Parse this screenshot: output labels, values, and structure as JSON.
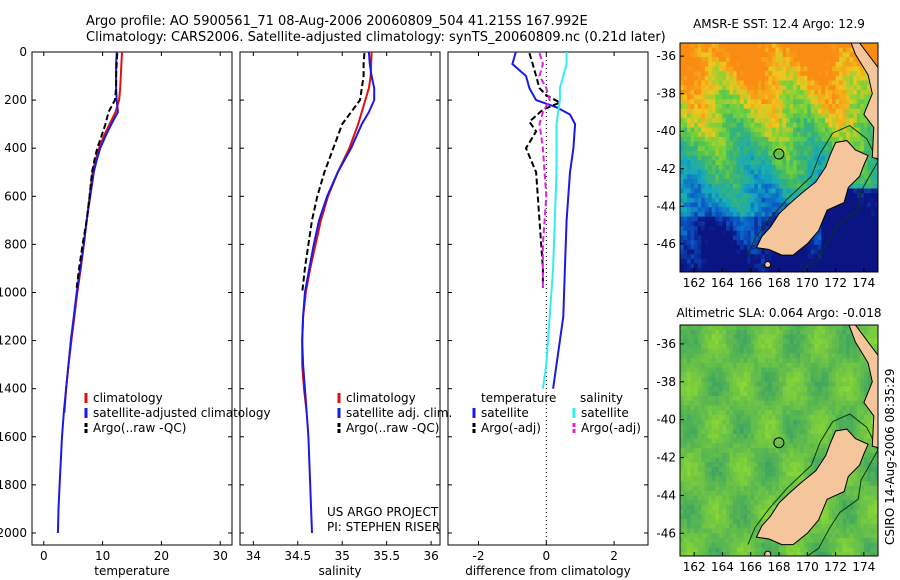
{
  "title": {
    "line1": "Argo profile: AO 5900561_71 08-Aug-2006 20060809_504 41.215S 167.992E",
    "line2": "Climatology: CARS2006. Satellite-adjusted climatology: synTS_20060809.nc (0.21d later)"
  },
  "stamp": "CSIRO 14-Aug-2006 08:35:29",
  "colors": {
    "climatology": "#dd1111",
    "satellite": "#1a1ae6",
    "argo": "#000000",
    "sal_sat": "#33eeee",
    "sal_argo": "#dd22dd",
    "land": "#f5c59c"
  },
  "chart_data": [
    {
      "type": "line",
      "id": "temperature",
      "xlabel": "temperature",
      "ylabel": "",
      "xlim": [
        -2,
        32
      ],
      "ylim": [
        2050,
        0
      ],
      "xticks": [
        "0",
        "10",
        "20",
        "30"
      ],
      "xtick_values": [
        0,
        10,
        20,
        30
      ],
      "yticks": [
        "0",
        "200",
        "400",
        "600",
        "800",
        "1000",
        "1200",
        "1400",
        "1600",
        "1800",
        "2000"
      ],
      "ytick_values": [
        0,
        200,
        400,
        600,
        800,
        1000,
        1200,
        1400,
        1600,
        1800,
        2000
      ],
      "legend": [
        "climatology",
        "satellite-adjusted climatology",
        "Argo(..raw -QC)"
      ],
      "series": [
        {
          "name": "climatology",
          "style": "solid",
          "color": "#dd1111",
          "points": [
            [
              13.3,
              0
            ],
            [
              13.2,
              50
            ],
            [
              13.1,
              100
            ],
            [
              13.0,
              150
            ],
            [
              12.8,
              200
            ],
            [
              12.2,
              250
            ],
            [
              11.2,
              300
            ],
            [
              10.2,
              350
            ],
            [
              9.4,
              400
            ],
            [
              8.8,
              450
            ],
            [
              8.3,
              500
            ],
            [
              7.8,
              600
            ],
            [
              7.3,
              700
            ],
            [
              6.8,
              800
            ],
            [
              6.3,
              900
            ],
            [
              5.7,
              1000
            ],
            [
              5.2,
              1100
            ],
            [
              4.7,
              1200
            ],
            [
              4.2,
              1300
            ],
            [
              3.8,
              1400
            ],
            [
              3.5,
              1500
            ]
          ]
        },
        {
          "name": "satellite-adjusted climatology",
          "style": "solid",
          "color": "#1a1ae6",
          "points": [
            [
              12.4,
              0
            ],
            [
              12.3,
              50
            ],
            [
              12.3,
              100
            ],
            [
              12.3,
              150
            ],
            [
              12.4,
              200
            ],
            [
              12.6,
              250
            ],
            [
              11.5,
              300
            ],
            [
              10.5,
              350
            ],
            [
              9.6,
              400
            ],
            [
              9.0,
              450
            ],
            [
              8.5,
              500
            ],
            [
              7.9,
              600
            ],
            [
              7.3,
              700
            ],
            [
              6.8,
              800
            ],
            [
              6.2,
              900
            ],
            [
              5.6,
              1000
            ],
            [
              5.1,
              1100
            ],
            [
              4.6,
              1200
            ],
            [
              4.2,
              1300
            ],
            [
              3.8,
              1400
            ],
            [
              3.4,
              1500
            ],
            [
              3.1,
              1600
            ],
            [
              2.9,
              1700
            ],
            [
              2.7,
              1800
            ],
            [
              2.5,
              1900
            ],
            [
              2.4,
              2000
            ]
          ]
        },
        {
          "name": "Argo(..raw -QC)",
          "style": "dashed",
          "color": "#000000",
          "points": [
            [
              12.5,
              5
            ],
            [
              12.4,
              50
            ],
            [
              12.3,
              100
            ],
            [
              12.3,
              150
            ],
            [
              12.1,
              200
            ],
            [
              11.0,
              250
            ],
            [
              10.5,
              300
            ],
            [
              9.8,
              350
            ],
            [
              9.1,
              400
            ],
            [
              8.6,
              450
            ],
            [
              8.2,
              500
            ],
            [
              7.8,
              600
            ],
            [
              7.3,
              700
            ],
            [
              6.6,
              800
            ],
            [
              6.0,
              900
            ],
            [
              5.6,
              980
            ]
          ]
        }
      ]
    },
    {
      "type": "line",
      "id": "salinity",
      "xlabel": "salinity",
      "xlim": [
        33.85,
        36.1
      ],
      "ylim": [
        2050,
        0
      ],
      "xticks": [
        "34",
        "34.5",
        "35",
        "35.5",
        "36"
      ],
      "xtick_values": [
        34,
        34.5,
        35,
        35.5,
        36
      ],
      "legend": [
        "climatology",
        "satellite adj. clim.",
        "Argo(..raw -QC)"
      ],
      "annotation": [
        "US ARGO PROJECT",
        "PI: STEPHEN RISER"
      ],
      "series": [
        {
          "name": "climatology",
          "style": "solid",
          "color": "#dd1111",
          "points": [
            [
              35.33,
              0
            ],
            [
              35.32,
              100
            ],
            [
              35.3,
              150
            ],
            [
              35.26,
              200
            ],
            [
              35.18,
              300
            ],
            [
              35.08,
              400
            ],
            [
              34.95,
              500
            ],
            [
              34.84,
              600
            ],
            [
              34.76,
              700
            ],
            [
              34.7,
              800
            ],
            [
              34.64,
              900
            ],
            [
              34.59,
              1000
            ],
            [
              34.56,
              1100
            ],
            [
              34.55,
              1200
            ],
            [
              34.55,
              1300
            ],
            [
              34.57,
              1400
            ],
            [
              34.6,
              1500
            ]
          ]
        },
        {
          "name": "satellite adj. clim.",
          "style": "solid",
          "color": "#1a1ae6",
          "points": [
            [
              35.3,
              0
            ],
            [
              35.31,
              50
            ],
            [
              35.33,
              100
            ],
            [
              35.36,
              150
            ],
            [
              35.36,
              200
            ],
            [
              35.3,
              250
            ],
            [
              35.22,
              300
            ],
            [
              35.1,
              400
            ],
            [
              34.95,
              500
            ],
            [
              34.83,
              600
            ],
            [
              34.74,
              700
            ],
            [
              34.68,
              800
            ],
            [
              34.63,
              900
            ],
            [
              34.58,
              1000
            ],
            [
              34.56,
              1100
            ],
            [
              34.55,
              1200
            ],
            [
              34.56,
              1300
            ],
            [
              34.58,
              1400
            ],
            [
              34.6,
              1500
            ],
            [
              34.62,
              1600
            ],
            [
              34.63,
              1700
            ],
            [
              34.64,
              1800
            ],
            [
              34.65,
              1900
            ],
            [
              34.66,
              2000
            ]
          ]
        },
        {
          "name": "Argo(..raw -QC)",
          "style": "dashed",
          "color": "#000000",
          "points": [
            [
              35.25,
              5
            ],
            [
              35.24,
              50
            ],
            [
              35.24,
              100
            ],
            [
              35.22,
              150
            ],
            [
              35.2,
              200
            ],
            [
              35.1,
              250
            ],
            [
              35.0,
              300
            ],
            [
              34.9,
              400
            ],
            [
              34.8,
              500
            ],
            [
              34.72,
              600
            ],
            [
              34.66,
              700
            ],
            [
              34.62,
              800
            ],
            [
              34.58,
              900
            ],
            [
              34.55,
              1000
            ]
          ]
        }
      ]
    },
    {
      "type": "line",
      "id": "difference",
      "xlabel": "difference from climatology",
      "xlim": [
        -2.9,
        3.0
      ],
      "ylim": [
        2050,
        0
      ],
      "xticks": [
        "-2",
        "0",
        "2"
      ],
      "xtick_values": [
        -2,
        0,
        2
      ],
      "legend_temperature": [
        "temperature",
        "satellite",
        "Argo(-adj)"
      ],
      "legend_salinity": [
        "salinity",
        "satellite",
        "Argo(-adj)"
      ],
      "series": [
        {
          "name": "temperature satellite",
          "style": "solid",
          "color": "#1a1ae6",
          "points": [
            [
              -0.9,
              0
            ],
            [
              -1.0,
              50
            ],
            [
              -0.6,
              100
            ],
            [
              -0.5,
              150
            ],
            [
              -0.3,
              200
            ],
            [
              0.3,
              230
            ],
            [
              0.7,
              260
            ],
            [
              0.85,
              300
            ],
            [
              0.8,
              400
            ],
            [
              0.7,
              500
            ],
            [
              0.6,
              700
            ],
            [
              0.55,
              900
            ],
            [
              0.5,
              1100
            ],
            [
              0.3,
              1300
            ],
            [
              0.2,
              1400
            ]
          ]
        },
        {
          "name": "temperature Argo(-adj)",
          "style": "dashed",
          "color": "#000000",
          "points": [
            [
              -0.5,
              5
            ],
            [
              -0.4,
              50
            ],
            [
              -0.3,
              100
            ],
            [
              -0.2,
              150
            ],
            [
              0.0,
              180
            ],
            [
              0.4,
              210
            ],
            [
              -0.1,
              240
            ],
            [
              -0.5,
              290
            ],
            [
              -0.3,
              330
            ],
            [
              -0.6,
              400
            ],
            [
              -0.3,
              500
            ],
            [
              -0.2,
              700
            ],
            [
              -0.1,
              900
            ],
            [
              -0.1,
              980
            ]
          ]
        },
        {
          "name": "salinity satellite",
          "style": "solid",
          "color": "#33eeee",
          "points": [
            [
              0.6,
              0
            ],
            [
              0.6,
              50
            ],
            [
              0.4,
              150
            ],
            [
              0.4,
              200
            ],
            [
              0.3,
              300
            ],
            [
              0.3,
              500
            ],
            [
              0.25,
              700
            ],
            [
              0.2,
              900
            ],
            [
              0.1,
              1100
            ],
            [
              0.0,
              1300
            ],
            [
              -0.1,
              1400
            ]
          ]
        },
        {
          "name": "salinity Argo(-adj)",
          "style": "dashed",
          "color": "#dd22dd",
          "points": [
            [
              -0.2,
              5
            ],
            [
              -0.1,
              50
            ],
            [
              -0.2,
              100
            ],
            [
              0.0,
              150
            ],
            [
              0.1,
              200
            ],
            [
              -0.1,
              250
            ],
            [
              -0.2,
              300
            ],
            [
              -0.1,
              400
            ],
            [
              0.0,
              600
            ],
            [
              -0.1,
              800
            ],
            [
              -0.1,
              980
            ]
          ]
        }
      ]
    },
    {
      "type": "heatmap",
      "id": "sst-map",
      "title": "AMSR-E SST: 12.4  Argo: 12.9",
      "xlim": [
        161,
        175
      ],
      "ylim": [
        -47.5,
        -35.3
      ],
      "xticks": [
        "162",
        "164",
        "166",
        "168",
        "170",
        "172",
        "174"
      ],
      "xtick_values": [
        162,
        164,
        166,
        168,
        170,
        172,
        174
      ],
      "yticks": [
        "-36",
        "-38",
        "-40",
        "-42",
        "-44",
        "-46"
      ],
      "ytick_values": [
        -36,
        -38,
        -40,
        -42,
        -44,
        -46
      ],
      "marker": {
        "lon": 167.992,
        "lat": -41.215
      }
    },
    {
      "type": "heatmap",
      "id": "sla-map",
      "title": "Altimetric SLA: 0.064  Argo: -0.018",
      "xlim": [
        161,
        175
      ],
      "ylim": [
        -47.2,
        -35.0
      ],
      "xticks": [
        "162",
        "164",
        "166",
        "168",
        "170",
        "172",
        "174"
      ],
      "xtick_values": [
        162,
        164,
        166,
        168,
        170,
        172,
        174
      ],
      "yticks": [
        "-36",
        "-38",
        "-40",
        "-42",
        "-44",
        "-46"
      ],
      "ytick_values": [
        -36,
        -38,
        -40,
        -42,
        -44,
        -46
      ],
      "marker": {
        "lon": 167.992,
        "lat": -41.215
      }
    }
  ]
}
